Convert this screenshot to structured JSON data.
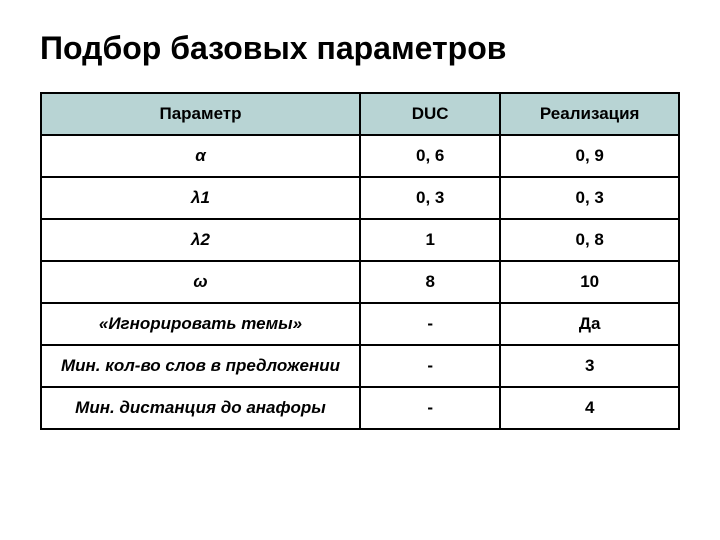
{
  "title": "Подбор базовых параметров",
  "table": {
    "header_bg": "#b8d4d4",
    "border_color": "#000000",
    "columns": [
      "Параметр",
      "DUC",
      "Реализация"
    ],
    "rows": [
      {
        "param": "α",
        "duc": "0, 6",
        "real": "0, 9",
        "italic": true
      },
      {
        "param": "λ1",
        "duc": "0, 3",
        "real": "0, 3",
        "italic": true
      },
      {
        "param": "λ2",
        "duc": "1",
        "real": "0, 8",
        "italic": true
      },
      {
        "param": "ω",
        "duc": "8",
        "real": "10",
        "italic": true
      },
      {
        "param": "«Игнорировать темы»",
        "duc": "-",
        "real": "Да",
        "italic": true
      },
      {
        "param": "Мин. кол-во слов в предложении",
        "duc": "-",
        "real": "3",
        "italic": true
      },
      {
        "param": "Мин. дистанция до анафоры",
        "duc": "-",
        "real": "4",
        "italic": true
      }
    ]
  }
}
